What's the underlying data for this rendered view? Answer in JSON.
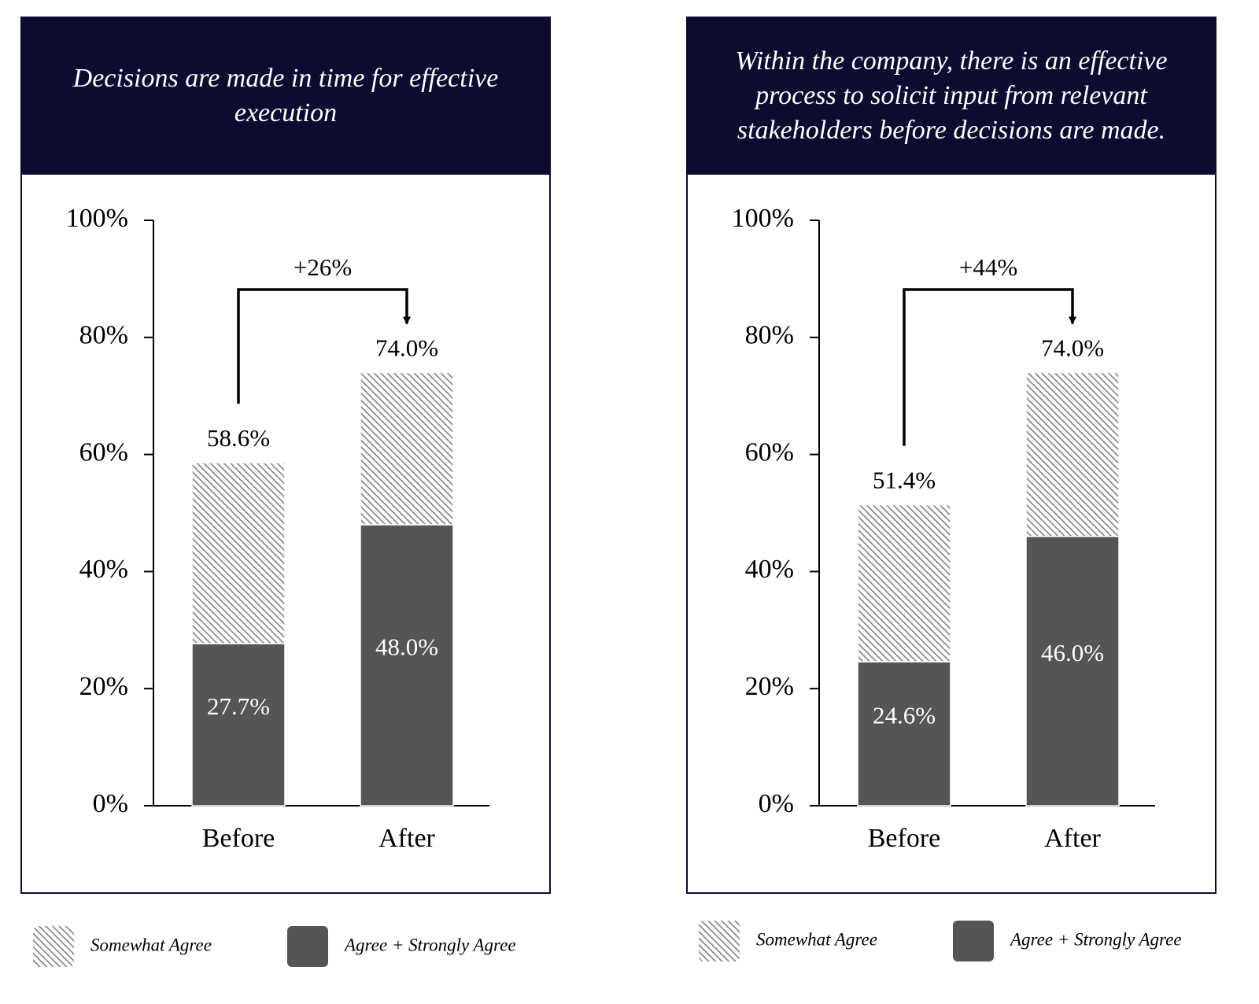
{
  "chart_data": [
    {
      "type": "stacked_bar",
      "title": "Decisions are made in time for effective execution",
      "categories": [
        "Before",
        "After"
      ],
      "series": [
        {
          "name": "Somewhat Agree",
          "color": "#8c8c8c",
          "values": [
            30.9,
            26.0
          ]
        },
        {
          "name": "Agree + Strongly Agree",
          "color": "#555558",
          "values": [
            27.7,
            48.0
          ],
          "value_labels": [
            "27.7%",
            "48.0%"
          ]
        }
      ],
      "totals": [
        58.6,
        74.0
      ],
      "total_labels": [
        "58.6%",
        "74.0%"
      ],
      "annotation": "+26%",
      "ylim": [
        0,
        100
      ],
      "yticks": [
        {
          "value": 0,
          "label": "0%"
        },
        {
          "value": 20,
          "label": "20%"
        },
        {
          "value": 40,
          "label": "40%"
        },
        {
          "value": 60,
          "label": "60%"
        },
        {
          "value": 80,
          "label": "80%"
        },
        {
          "value": 100,
          "label": "100%"
        }
      ]
    },
    {
      "type": "stacked_bar",
      "title": "Within the company, there is an effective process to solicit input from relevant stakeholders before decisions are made.",
      "categories": [
        "Before",
        "After"
      ],
      "series": [
        {
          "name": "Somewhat Agree",
          "color": "#8c8c8c",
          "values": [
            26.8,
            28.0
          ]
        },
        {
          "name": "Agree + Strongly Agree",
          "color": "#555558",
          "values": [
            24.6,
            46.0
          ],
          "value_labels": [
            "24.6%",
            "46.0%"
          ]
        }
      ],
      "totals": [
        51.4,
        74.0
      ],
      "total_labels": [
        "51.4%",
        "74.0%"
      ],
      "annotation": "+44%",
      "ylim": [
        0,
        100
      ],
      "yticks": [
        {
          "value": 0,
          "label": "0%"
        },
        {
          "value": 20,
          "label": "20%"
        },
        {
          "value": 40,
          "label": "40%"
        },
        {
          "value": 60,
          "label": "60%"
        },
        {
          "value": 80,
          "label": "80%"
        },
        {
          "value": 100,
          "label": "100%"
        }
      ]
    }
  ]
}
